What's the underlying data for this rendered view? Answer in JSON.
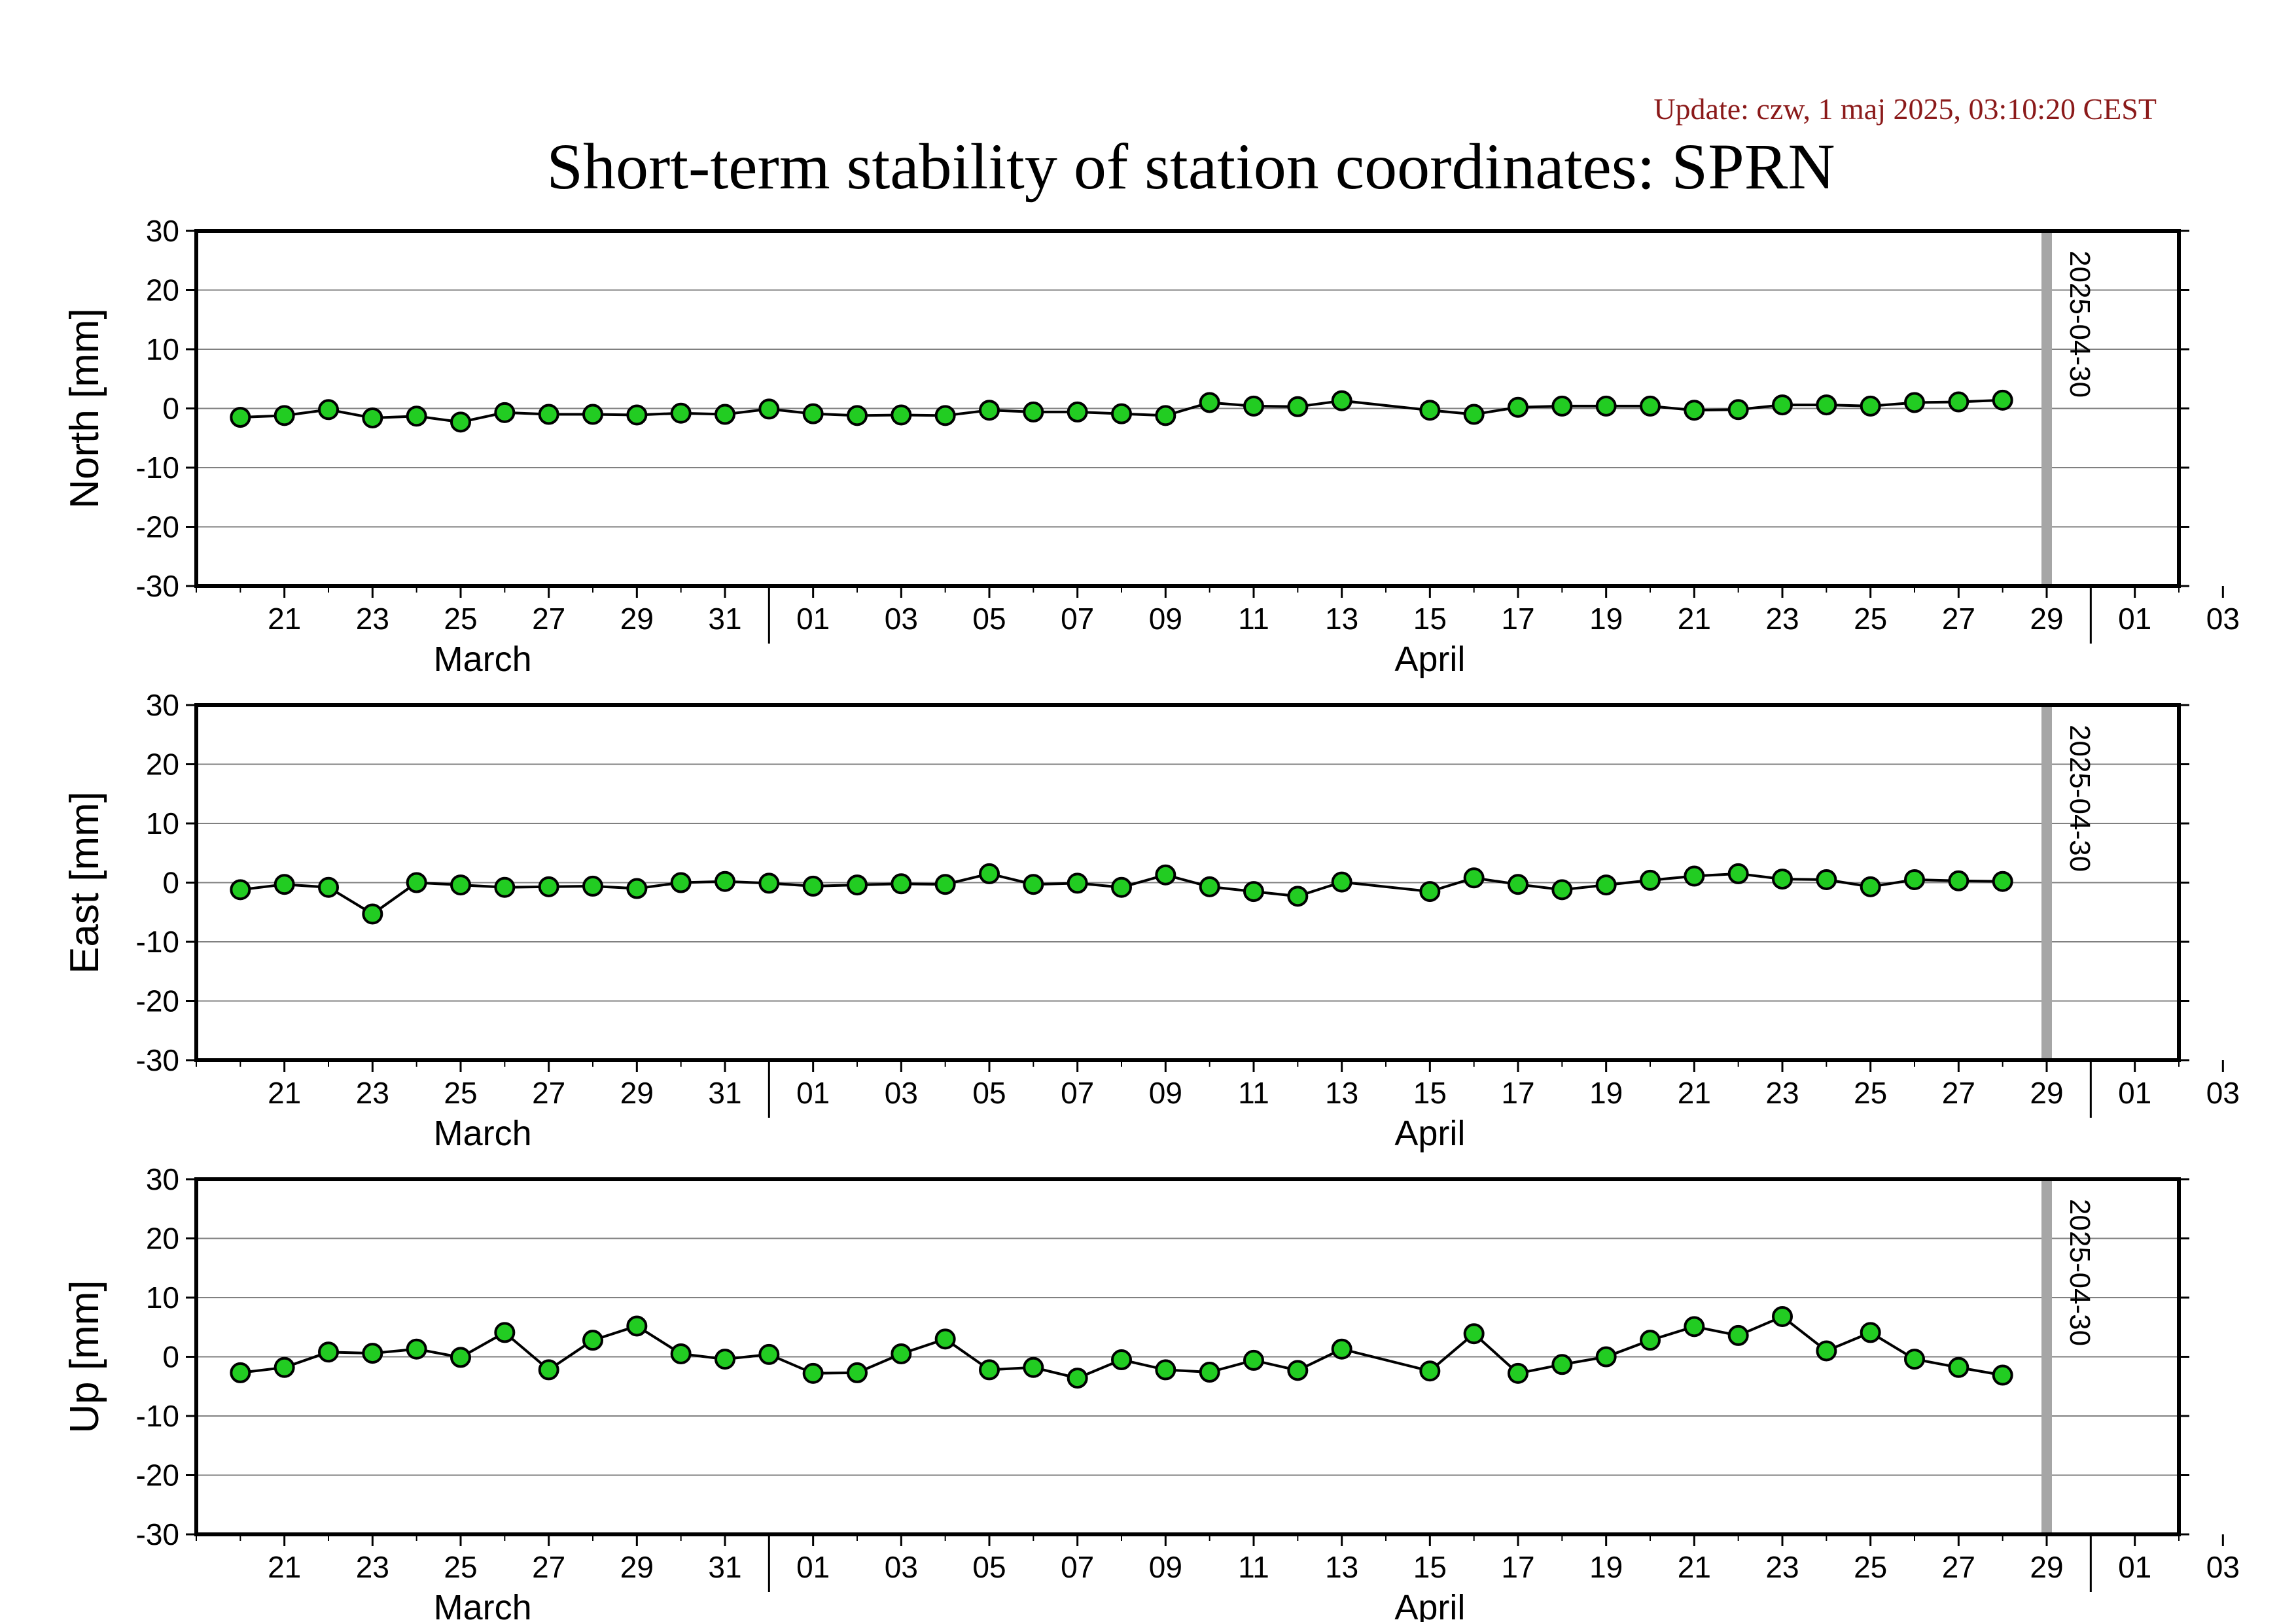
{
  "update_text": "Update: czw, 1 maj 2025, 03:10:20 CEST",
  "title": "Short-term stability of station coordinates: SPRN",
  "colors": {
    "marker_fill": "#22cc22",
    "marker_stroke": "#000000",
    "series_line": "#000000",
    "grid": "#808080",
    "current_day_bar": "#a6a6a6",
    "update_text": "#8b1a1a"
  },
  "chart_data": [
    {
      "type": "line",
      "ylabel": "North [mm]",
      "ylim": [
        -30,
        30
      ],
      "yticks": [
        30,
        20,
        10,
        0,
        -10,
        -20,
        -30
      ],
      "grid": true,
      "x_start": "2025-03-19",
      "x_end": "2025-05-03",
      "x_ticks": [
        "21",
        "23",
        "25",
        "27",
        "29",
        "31",
        "01",
        "03",
        "05",
        "07",
        "09",
        "11",
        "13",
        "15",
        "17",
        "19",
        "21",
        "23",
        "25",
        "27",
        "29",
        "01",
        "03"
      ],
      "month_labels": [
        "March",
        "April"
      ],
      "current_day_label": "2025-04-30",
      "series": [
        {
          "x": [
            "2025-03-20",
            "2025-03-21",
            "2025-03-22",
            "2025-03-23",
            "2025-03-24",
            "2025-03-25",
            "2025-03-26",
            "2025-03-27",
            "2025-03-28",
            "2025-03-29",
            "2025-03-30",
            "2025-03-31",
            "2025-04-01",
            "2025-04-02",
            "2025-04-03",
            "2025-04-04",
            "2025-04-05",
            "2025-04-06",
            "2025-04-07",
            "2025-04-08",
            "2025-04-09",
            "2025-04-10",
            "2025-04-11",
            "2025-04-12",
            "2025-04-13",
            "2025-04-14",
            "2025-04-16",
            "2025-04-17",
            "2025-04-18",
            "2025-04-19",
            "2025-04-20",
            "2025-04-21",
            "2025-04-22",
            "2025-04-23",
            "2025-04-24",
            "2025-04-25",
            "2025-04-26",
            "2025-04-27",
            "2025-04-28",
            "2025-04-29"
          ],
          "values": [
            -1.5,
            -1.2,
            -0.2,
            -1.6,
            -1.3,
            -2.3,
            -0.7,
            -1.0,
            -1.0,
            -1.1,
            -0.8,
            -1.0,
            -0.1,
            -0.9,
            -1.2,
            -1.1,
            -1.2,
            -0.3,
            -0.6,
            -0.6,
            -0.9,
            -1.2,
            1.0,
            0.4,
            0.3,
            1.3,
            -0.3,
            -1.0,
            0.2,
            0.4,
            0.4,
            0.4,
            -0.3,
            -0.2,
            0.6,
            0.6,
            0.4,
            1.0,
            1.1,
            1.4
          ]
        }
      ]
    },
    {
      "type": "line",
      "ylabel": "East [mm]",
      "ylim": [
        -30,
        30
      ],
      "yticks": [
        30,
        20,
        10,
        0,
        -10,
        -20,
        -30
      ],
      "grid": true,
      "x_start": "2025-03-19",
      "x_end": "2025-05-03",
      "x_ticks": [
        "21",
        "23",
        "25",
        "27",
        "29",
        "31",
        "01",
        "03",
        "05",
        "07",
        "09",
        "11",
        "13",
        "15",
        "17",
        "19",
        "21",
        "23",
        "25",
        "27",
        "29",
        "01",
        "03"
      ],
      "month_labels": [
        "March",
        "April"
      ],
      "current_day_label": "2025-04-30",
      "series": [
        {
          "x": [
            "2025-03-20",
            "2025-03-21",
            "2025-03-22",
            "2025-03-23",
            "2025-03-24",
            "2025-03-25",
            "2025-03-26",
            "2025-03-27",
            "2025-03-28",
            "2025-03-29",
            "2025-03-30",
            "2025-03-31",
            "2025-04-01",
            "2025-04-02",
            "2025-04-03",
            "2025-04-04",
            "2025-04-05",
            "2025-04-06",
            "2025-04-07",
            "2025-04-08",
            "2025-04-09",
            "2025-04-10",
            "2025-04-11",
            "2025-04-12",
            "2025-04-13",
            "2025-04-14",
            "2025-04-16",
            "2025-04-17",
            "2025-04-18",
            "2025-04-19",
            "2025-04-20",
            "2025-04-21",
            "2025-04-22",
            "2025-04-23",
            "2025-04-24",
            "2025-04-25",
            "2025-04-26",
            "2025-04-27",
            "2025-04-28",
            "2025-04-29"
          ],
          "values": [
            -1.2,
            -0.3,
            -0.8,
            -5.3,
            0.0,
            -0.4,
            -0.8,
            -0.7,
            -0.6,
            -1.0,
            0.0,
            0.2,
            -0.1,
            -0.6,
            -0.4,
            -0.2,
            -0.3,
            1.5,
            -0.3,
            -0.1,
            -0.8,
            1.3,
            -0.7,
            -1.5,
            -2.3,
            0.1,
            -1.5,
            0.8,
            -0.3,
            -1.2,
            -0.4,
            0.4,
            1.1,
            1.5,
            0.6,
            0.5,
            -0.7,
            0.5,
            0.3,
            0.2
          ]
        }
      ]
    },
    {
      "type": "line",
      "ylabel": "Up [mm]",
      "ylim": [
        -30,
        30
      ],
      "yticks": [
        30,
        20,
        10,
        0,
        -10,
        -20,
        -30
      ],
      "grid": true,
      "x_start": "2025-03-19",
      "x_end": "2025-05-03",
      "x_ticks": [
        "21",
        "23",
        "25",
        "27",
        "29",
        "31",
        "01",
        "03",
        "05",
        "07",
        "09",
        "11",
        "13",
        "15",
        "17",
        "19",
        "21",
        "23",
        "25",
        "27",
        "29",
        "01",
        "03"
      ],
      "month_labels": [
        "March",
        "April"
      ],
      "current_day_label": "2025-04-30",
      "series": [
        {
          "x": [
            "2025-03-20",
            "2025-03-21",
            "2025-03-22",
            "2025-03-23",
            "2025-03-24",
            "2025-03-25",
            "2025-03-26",
            "2025-03-27",
            "2025-03-28",
            "2025-03-29",
            "2025-03-30",
            "2025-03-31",
            "2025-04-01",
            "2025-04-02",
            "2025-04-03",
            "2025-04-04",
            "2025-04-05",
            "2025-04-06",
            "2025-04-07",
            "2025-04-08",
            "2025-04-09",
            "2025-04-10",
            "2025-04-11",
            "2025-04-12",
            "2025-04-13",
            "2025-04-14",
            "2025-04-16",
            "2025-04-17",
            "2025-04-18",
            "2025-04-19",
            "2025-04-20",
            "2025-04-21",
            "2025-04-22",
            "2025-04-23",
            "2025-04-24",
            "2025-04-25",
            "2025-04-26",
            "2025-04-27",
            "2025-04-28",
            "2025-04-29"
          ],
          "values": [
            -2.7,
            -1.8,
            0.8,
            0.6,
            1.3,
            -0.1,
            4.1,
            -2.2,
            2.8,
            5.2,
            0.5,
            -0.4,
            0.4,
            -2.8,
            -2.7,
            0.5,
            3.0,
            -2.2,
            -1.8,
            -3.6,
            -0.5,
            -2.2,
            -2.6,
            -0.6,
            -2.3,
            1.3,
            -2.4,
            3.9,
            -2.8,
            -1.3,
            0.0,
            2.8,
            5.1,
            3.6,
            6.8,
            1.0,
            4.1,
            -0.4,
            -1.8,
            -3.1
          ]
        }
      ]
    }
  ]
}
